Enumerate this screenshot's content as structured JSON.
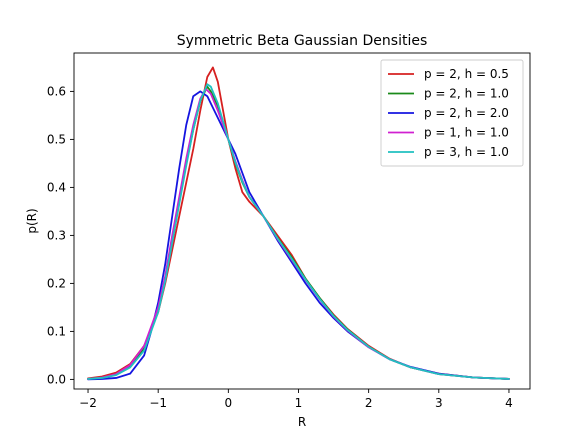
{
  "chart_data": {
    "type": "line",
    "title": "Symmetric Beta Gaussian Densities",
    "xlabel": "R",
    "ylabel": "p(R)",
    "xlim": [
      -2.2,
      4.3
    ],
    "ylim": [
      -0.02,
      0.68
    ],
    "xticks": [
      "−2",
      "−1",
      "0",
      "1",
      "2",
      "3",
      "4"
    ],
    "xtick_values": [
      -2,
      -1,
      0,
      1,
      2,
      3,
      4
    ],
    "yticks": [
      "0.0",
      "0.1",
      "0.2",
      "0.3",
      "0.4",
      "0.5",
      "0.6"
    ],
    "ytick_values": [
      0.0,
      0.1,
      0.2,
      0.3,
      0.4,
      0.5,
      0.6
    ],
    "legend_position": "top-right",
    "grid": false,
    "series": [
      {
        "name": "p = 2, h = 0.5",
        "color": "#d62020",
        "points": [
          [
            -2,
            0.002
          ],
          [
            -1.8,
            0.006
          ],
          [
            -1.6,
            0.014
          ],
          [
            -1.4,
            0.032
          ],
          [
            -1.2,
            0.07
          ],
          [
            -1.0,
            0.14
          ],
          [
            -0.9,
            0.2
          ],
          [
            -0.8,
            0.27
          ],
          [
            -0.7,
            0.34
          ],
          [
            -0.6,
            0.41
          ],
          [
            -0.5,
            0.48
          ],
          [
            -0.4,
            0.56
          ],
          [
            -0.3,
            0.63
          ],
          [
            -0.22,
            0.65
          ],
          [
            -0.15,
            0.62
          ],
          [
            -0.05,
            0.54
          ],
          [
            0,
            0.5
          ],
          [
            0.1,
            0.44
          ],
          [
            0.2,
            0.39
          ],
          [
            0.3,
            0.37
          ],
          [
            0.5,
            0.34
          ],
          [
            0.7,
            0.3
          ],
          [
            0.9,
            0.26
          ],
          [
            1.1,
            0.21
          ],
          [
            1.3,
            0.17
          ],
          [
            1.5,
            0.135
          ],
          [
            1.7,
            0.105
          ],
          [
            2.0,
            0.07
          ],
          [
            2.3,
            0.043
          ],
          [
            2.6,
            0.025
          ],
          [
            3.0,
            0.012
          ],
          [
            3.5,
            0.004
          ],
          [
            4.0,
            0.001
          ]
        ]
      },
      {
        "name": "p = 2, h = 1.0",
        "color": "#1a8a1a",
        "points": [
          [
            -2,
            0.001
          ],
          [
            -1.8,
            0.004
          ],
          [
            -1.6,
            0.01
          ],
          [
            -1.4,
            0.027
          ],
          [
            -1.2,
            0.065
          ],
          [
            -1.0,
            0.145
          ],
          [
            -0.9,
            0.21
          ],
          [
            -0.8,
            0.29
          ],
          [
            -0.7,
            0.37
          ],
          [
            -0.6,
            0.45
          ],
          [
            -0.5,
            0.52
          ],
          [
            -0.4,
            0.58
          ],
          [
            -0.3,
            0.61
          ],
          [
            -0.25,
            0.6
          ],
          [
            -0.15,
            0.57
          ],
          [
            -0.05,
            0.52
          ],
          [
            0,
            0.5
          ],
          [
            0.1,
            0.45
          ],
          [
            0.2,
            0.41
          ],
          [
            0.3,
            0.38
          ],
          [
            0.5,
            0.34
          ],
          [
            0.7,
            0.295
          ],
          [
            0.9,
            0.255
          ],
          [
            1.1,
            0.21
          ],
          [
            1.3,
            0.17
          ],
          [
            1.5,
            0.133
          ],
          [
            1.7,
            0.104
          ],
          [
            2.0,
            0.068
          ],
          [
            2.3,
            0.042
          ],
          [
            2.6,
            0.025
          ],
          [
            3.0,
            0.011
          ],
          [
            3.5,
            0.004
          ],
          [
            4.0,
            0.001
          ]
        ]
      },
      {
        "name": "p = 2, h = 2.0",
        "color": "#1515e0",
        "points": [
          [
            -2,
            0.0
          ],
          [
            -1.8,
            0.001
          ],
          [
            -1.6,
            0.003
          ],
          [
            -1.4,
            0.012
          ],
          [
            -1.2,
            0.05
          ],
          [
            -1.1,
            0.1
          ],
          [
            -1.0,
            0.16
          ],
          [
            -0.9,
            0.24
          ],
          [
            -0.8,
            0.34
          ],
          [
            -0.7,
            0.44
          ],
          [
            -0.6,
            0.53
          ],
          [
            -0.5,
            0.59
          ],
          [
            -0.4,
            0.6
          ],
          [
            -0.3,
            0.59
          ],
          [
            -0.2,
            0.56
          ],
          [
            -0.1,
            0.53
          ],
          [
            0,
            0.5
          ],
          [
            0.1,
            0.47
          ],
          [
            0.2,
            0.43
          ],
          [
            0.3,
            0.39
          ],
          [
            0.5,
            0.34
          ],
          [
            0.7,
            0.29
          ],
          [
            0.9,
            0.245
          ],
          [
            1.1,
            0.2
          ],
          [
            1.3,
            0.16
          ],
          [
            1.5,
            0.128
          ],
          [
            1.7,
            0.1
          ],
          [
            2.0,
            0.067
          ],
          [
            2.3,
            0.042
          ],
          [
            2.6,
            0.026
          ],
          [
            3.0,
            0.012
          ],
          [
            3.5,
            0.004
          ],
          [
            4.0,
            0.001
          ]
        ]
      },
      {
        "name": "p = 1, h = 1.0",
        "color": "#d020d0",
        "points": [
          [
            -2,
            0.001
          ],
          [
            -1.8,
            0.004
          ],
          [
            -1.6,
            0.011
          ],
          [
            -1.4,
            0.03
          ],
          [
            -1.2,
            0.07
          ],
          [
            -1.0,
            0.15
          ],
          [
            -0.9,
            0.215
          ],
          [
            -0.8,
            0.3
          ],
          [
            -0.7,
            0.38
          ],
          [
            -0.6,
            0.46
          ],
          [
            -0.5,
            0.53
          ],
          [
            -0.4,
            0.585
          ],
          [
            -0.32,
            0.605
          ],
          [
            -0.25,
            0.595
          ],
          [
            -0.15,
            0.56
          ],
          [
            -0.05,
            0.52
          ],
          [
            0,
            0.5
          ],
          [
            0.1,
            0.455
          ],
          [
            0.2,
            0.415
          ],
          [
            0.3,
            0.38
          ],
          [
            0.5,
            0.34
          ],
          [
            0.7,
            0.293
          ],
          [
            0.9,
            0.25
          ],
          [
            1.1,
            0.207
          ],
          [
            1.3,
            0.167
          ],
          [
            1.5,
            0.131
          ],
          [
            1.7,
            0.102
          ],
          [
            2.0,
            0.067
          ],
          [
            2.3,
            0.042
          ],
          [
            2.6,
            0.025
          ],
          [
            3.0,
            0.011
          ],
          [
            3.5,
            0.004
          ],
          [
            4.0,
            0.001
          ]
        ]
      },
      {
        "name": "p = 3, h = 1.0",
        "color": "#20c0c0",
        "points": [
          [
            -2,
            0.001
          ],
          [
            -1.8,
            0.003
          ],
          [
            -1.6,
            0.009
          ],
          [
            -1.4,
            0.025
          ],
          [
            -1.2,
            0.06
          ],
          [
            -1.0,
            0.14
          ],
          [
            -0.9,
            0.205
          ],
          [
            -0.8,
            0.285
          ],
          [
            -0.7,
            0.365
          ],
          [
            -0.6,
            0.445
          ],
          [
            -0.5,
            0.52
          ],
          [
            -0.4,
            0.58
          ],
          [
            -0.3,
            0.615
          ],
          [
            -0.25,
            0.61
          ],
          [
            -0.15,
            0.575
          ],
          [
            -0.05,
            0.525
          ],
          [
            0,
            0.5
          ],
          [
            0.1,
            0.452
          ],
          [
            0.2,
            0.412
          ],
          [
            0.3,
            0.38
          ],
          [
            0.5,
            0.34
          ],
          [
            0.7,
            0.294
          ],
          [
            0.9,
            0.252
          ],
          [
            1.1,
            0.208
          ],
          [
            1.3,
            0.168
          ],
          [
            1.5,
            0.132
          ],
          [
            1.7,
            0.103
          ],
          [
            2.0,
            0.068
          ],
          [
            2.3,
            0.042
          ],
          [
            2.6,
            0.025
          ],
          [
            3.0,
            0.011
          ],
          [
            3.5,
            0.004
          ],
          [
            4.0,
            0.001
          ]
        ]
      }
    ]
  }
}
